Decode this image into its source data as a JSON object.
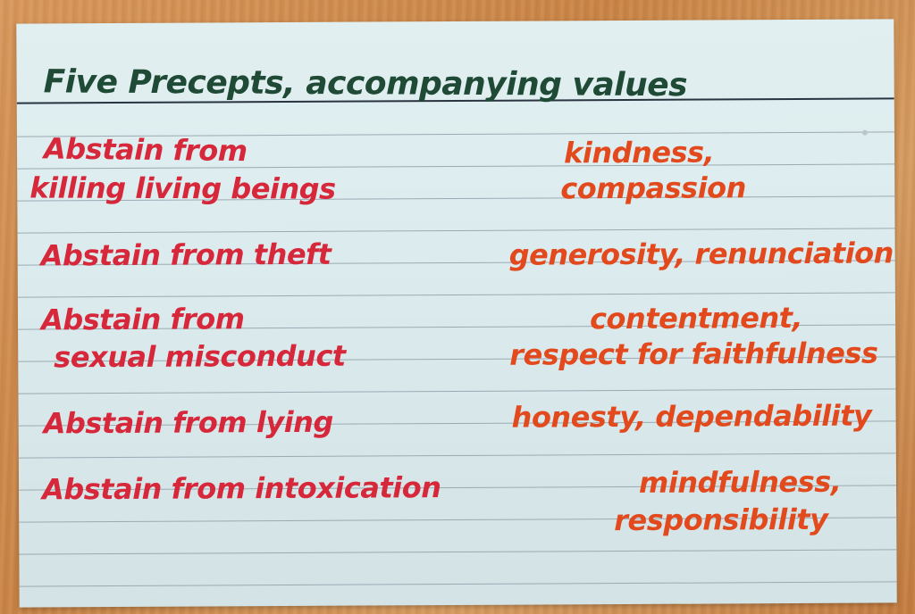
{
  "title": "Five Precepts, accompanying values",
  "rows": [
    {
      "precept": [
        "Abstain from",
        "killing living beings"
      ],
      "value": [
        "kindness,",
        "compassion"
      ]
    },
    {
      "precept": [
        "Abstain from theft"
      ],
      "value": [
        "generosity, renunciation"
      ]
    },
    {
      "precept": [
        "Abstain from",
        "sexual misconduct"
      ],
      "value": [
        "contentment,",
        "respect for faithfulness"
      ]
    },
    {
      "precept": [
        "Abstain from lying"
      ],
      "value": [
        "honesty, dependability"
      ]
    },
    {
      "precept": [
        "Abstain from intoxication"
      ],
      "value": [
        "mindfulness,",
        "responsibility"
      ]
    }
  ],
  "colors": {
    "title_ink": "#1f4a36",
    "precept_ink": "#d6283a",
    "value_ink": "#e24a1e",
    "card": "#dcecee",
    "table": "#c98445"
  }
}
